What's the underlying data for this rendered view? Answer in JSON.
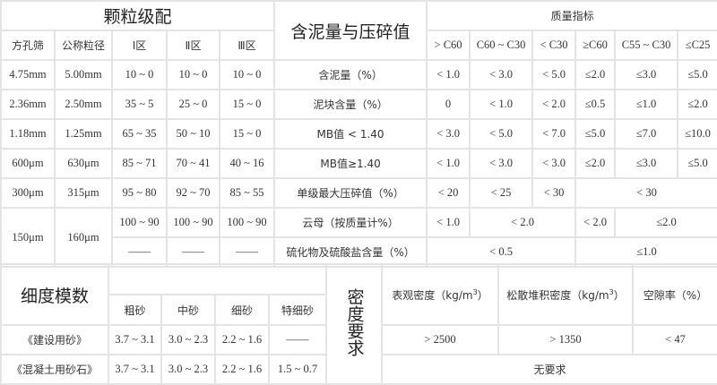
{
  "grading": {
    "title": "颗粒级配",
    "headers": [
      "方孔筛",
      "公称粒径",
      "Ⅰ区",
      "Ⅱ区",
      "Ⅲ区"
    ],
    "rows": [
      [
        "4.75mm",
        "5.00mm",
        "10 ~ 0",
        "10 ~ 0",
        "10 ~ 0"
      ],
      [
        "2.36mm",
        "2.50mm",
        "35 ~ 5",
        "25 ~ 0",
        "15 ~ 0"
      ],
      [
        "1.18mm",
        "1.25mm",
        "65 ~ 35",
        "50 ~ 10",
        "15 ~ 0"
      ],
      [
        "600μm",
        "630μm",
        "85 ~ 71",
        "70 ~ 41",
        "40 ~ 16"
      ],
      [
        "300μm",
        "315μm",
        "95 ~ 80",
        "92 ~ 70",
        "85 ~ 55"
      ],
      [
        "150μm",
        "160μm",
        "100 ~ 90",
        "100 ~ 90",
        "100 ~ 90"
      ]
    ],
    "last_row": [
      "——",
      "——",
      "——"
    ]
  },
  "mud": {
    "title": "含泥量与压碎值",
    "quality_title": "质量指标",
    "grades": [
      "> C60",
      "C60 ~ C30",
      "< C30",
      "≥C60",
      "C55 ~ C30",
      "≤C25"
    ],
    "rows": [
      {
        "label": "含泥量（%）",
        "values": [
          "< 1.0",
          "< 3.0",
          "< 5.0",
          "≤2.0",
          "≤3.0",
          "≤5.0"
        ]
      },
      {
        "label": "泥块含量（%）",
        "values": [
          "0",
          "< 1.0",
          "< 2.0",
          "≤0.5",
          "≤1.0",
          "≤2.0"
        ]
      },
      {
        "label": "MB值 < 1.40",
        "values": [
          "< 3.0",
          "< 5.0",
          "< 7.0",
          "≤5.0",
          "≤7.0",
          "≤10.0"
        ]
      },
      {
        "label": "MB值≥1.40",
        "values": [
          "< 1.0",
          "< 3.0",
          "< 3.0",
          "≤2.0",
          "≤3.0",
          "≤5.0"
        ]
      },
      {
        "label": "单级最大压碎值（%）",
        "values": [
          "< 20",
          "< 25",
          "< 30",
          "< 30"
        ]
      },
      {
        "label": "云母（按质量计%）",
        "values": [
          "< 1.0",
          "< 2.0",
          "< 2.0",
          "≤2.0"
        ]
      },
      {
        "label": "硫化物及硫酸盐含量（%）",
        "values": [
          "< 0.5",
          "≤1.0"
        ]
      }
    ]
  },
  "fineness": {
    "title": "细度模数",
    "headers": [
      "粗砂",
      "中砂",
      "细砂",
      "特细砂"
    ],
    "rows": [
      {
        "label": "《建设用砂》",
        "values": [
          "3.7 ~ 3.1",
          "3.0 ~ 2.3",
          "2.2 ~ 1.6",
          "——"
        ]
      },
      {
        "label": "《混凝土用砂石》",
        "values": [
          "3.7 ~ 3.1",
          "3.0 ~ 2.3",
          "2.2 ~ 1.6",
          "1.5 ~ 0.7"
        ]
      }
    ]
  },
  "density": {
    "title": "密度要求",
    "headers": [
      {
        "label": "表观密度（kg/m",
        "sup": "3",
        "tail": "）"
      },
      {
        "label": "松散堆积密度（kg/m",
        "sup": "3",
        "tail": "）"
      },
      {
        "label": "空隙率（%）",
        "sup": "",
        "tail": ""
      }
    ],
    "values": [
      "> 2500",
      "> 1350",
      "< 47"
    ],
    "no_requirement": "无要求"
  }
}
